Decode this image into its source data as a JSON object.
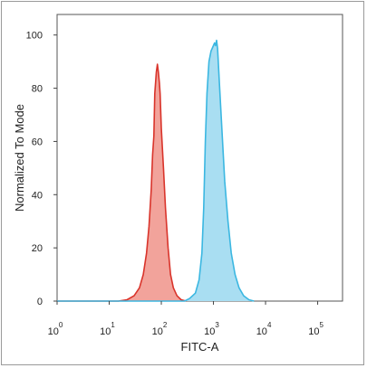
{
  "chart_data": {
    "type": "area",
    "xlabel": "FITC-A",
    "ylabel": "Normalized To Mode",
    "x_scale": "log",
    "xlim": [
      1,
      300000
    ],
    "ylim": [
      0,
      105
    ],
    "x_ticks": [
      {
        "base": "10",
        "exp": "0",
        "value": 1
      },
      {
        "base": "10",
        "exp": "1",
        "value": 10
      },
      {
        "base": "10",
        "exp": "2",
        "value": 100
      },
      {
        "base": "10",
        "exp": "3",
        "value": 1000
      },
      {
        "base": "10",
        "exp": "4",
        "value": 10000
      },
      {
        "base": "10",
        "exp": "5",
        "value": 100000
      }
    ],
    "y_ticks": [
      0,
      20,
      40,
      60,
      80,
      100
    ],
    "grid": false,
    "series": [
      {
        "color_fill": "#f2a39b",
        "color_line": "#d9342b",
        "points": [
          [
            1,
            0
          ],
          [
            15,
            0
          ],
          [
            22,
            0.5
          ],
          [
            30,
            2
          ],
          [
            38,
            5
          ],
          [
            45,
            10
          ],
          [
            52,
            18
          ],
          [
            58,
            28
          ],
          [
            64,
            42
          ],
          [
            68,
            55
          ],
          [
            72,
            62
          ],
          [
            75,
            78
          ],
          [
            80,
            86
          ],
          [
            84,
            89
          ],
          [
            88,
            86
          ],
          [
            92,
            82
          ],
          [
            95,
            78
          ],
          [
            100,
            65
          ],
          [
            110,
            50
          ],
          [
            120,
            35
          ],
          [
            135,
            20
          ],
          [
            150,
            10
          ],
          [
            170,
            5
          ],
          [
            200,
            2
          ],
          [
            240,
            0.5
          ],
          [
            300,
            0
          ]
        ]
      },
      {
        "color_fill": "#a9def2",
        "color_line": "#3bb7e1",
        "points": [
          [
            1,
            0
          ],
          [
            280,
            0
          ],
          [
            350,
            1
          ],
          [
            450,
            3
          ],
          [
            530,
            8
          ],
          [
            600,
            18
          ],
          [
            650,
            35
          ],
          [
            700,
            60
          ],
          [
            750,
            78
          ],
          [
            820,
            90
          ],
          [
            900,
            94
          ],
          [
            1000,
            96
          ],
          [
            1050,
            97
          ],
          [
            1100,
            96
          ],
          [
            1150,
            98
          ],
          [
            1200,
            95
          ],
          [
            1300,
            82
          ],
          [
            1450,
            65
          ],
          [
            1650,
            45
          ],
          [
            1900,
            30
          ],
          [
            2200,
            18
          ],
          [
            2600,
            10
          ],
          [
            3100,
            5
          ],
          [
            3800,
            2
          ],
          [
            4800,
            0.5
          ],
          [
            6000,
            0
          ]
        ]
      }
    ]
  }
}
